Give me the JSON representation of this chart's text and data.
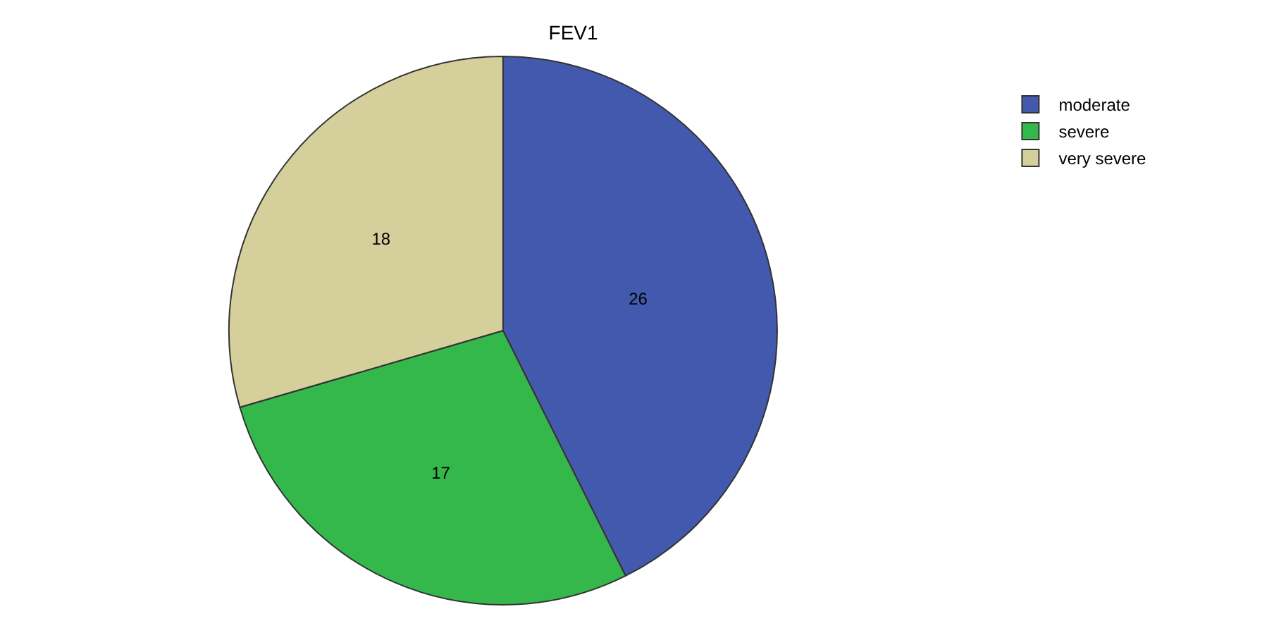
{
  "chart_data": {
    "type": "pie",
    "title": "FEV1",
    "categories": [
      "moderate",
      "severe",
      "very severe"
    ],
    "values": [
      26,
      17,
      18
    ],
    "colors": [
      "#4259ad",
      "#34b84b",
      "#d5cf9b"
    ],
    "data_labels": true,
    "legend": "top right"
  }
}
